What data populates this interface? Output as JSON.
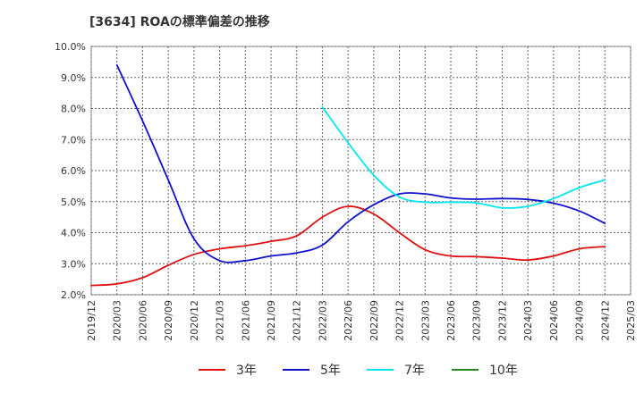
{
  "chart_data": {
    "type": "line",
    "title": "[3634]  ROAの標準偏差の推移",
    "x": [
      "2019/12",
      "2020/03",
      "2020/06",
      "2020/09",
      "2020/12",
      "2021/03",
      "2021/06",
      "2021/09",
      "2021/12",
      "2022/03",
      "2022/06",
      "2022/09",
      "2022/12",
      "2023/03",
      "2023/06",
      "2023/09",
      "2023/12",
      "2024/03",
      "2024/06",
      "2024/09",
      "2024/12",
      "2025/03"
    ],
    "ylim": [
      2.0,
      10.0
    ],
    "yticks": [
      2.0,
      3.0,
      4.0,
      5.0,
      6.0,
      7.0,
      8.0,
      9.0,
      10.0
    ],
    "ytick_labels": [
      "2.0%",
      "3.0%",
      "4.0%",
      "5.0%",
      "6.0%",
      "7.0%",
      "8.0%",
      "9.0%",
      "10.0%"
    ],
    "grid": true,
    "legend_position": "bottom",
    "series": [
      {
        "name": "3年",
        "color": "#dd1111",
        "values": [
          2.3,
          2.35,
          2.55,
          2.95,
          3.3,
          3.48,
          3.58,
          3.72,
          3.9,
          4.5,
          4.85,
          4.6,
          4.0,
          3.45,
          3.25,
          3.23,
          3.18,
          3.12,
          3.25,
          3.48,
          3.55,
          null
        ]
      },
      {
        "name": "5年",
        "color": "#1111cc",
        "values": [
          null,
          9.4,
          7.6,
          5.7,
          3.8,
          3.1,
          3.1,
          3.25,
          3.35,
          3.6,
          4.35,
          4.9,
          5.25,
          5.25,
          5.12,
          5.08,
          5.1,
          5.07,
          4.95,
          4.7,
          4.3,
          null
        ]
      },
      {
        "name": "7年",
        "color": "#00e5ee",
        "values": [
          null,
          null,
          null,
          null,
          null,
          null,
          null,
          null,
          null,
          8.05,
          6.9,
          5.85,
          5.15,
          4.98,
          4.98,
          4.96,
          4.8,
          4.85,
          5.1,
          5.45,
          5.7,
          null
        ]
      },
      {
        "name": "10年",
        "color": "#228b22",
        "values": [
          null,
          null,
          null,
          null,
          null,
          null,
          null,
          null,
          null,
          null,
          null,
          null,
          null,
          null,
          null,
          null,
          null,
          null,
          null,
          null,
          null,
          null
        ]
      }
    ]
  }
}
